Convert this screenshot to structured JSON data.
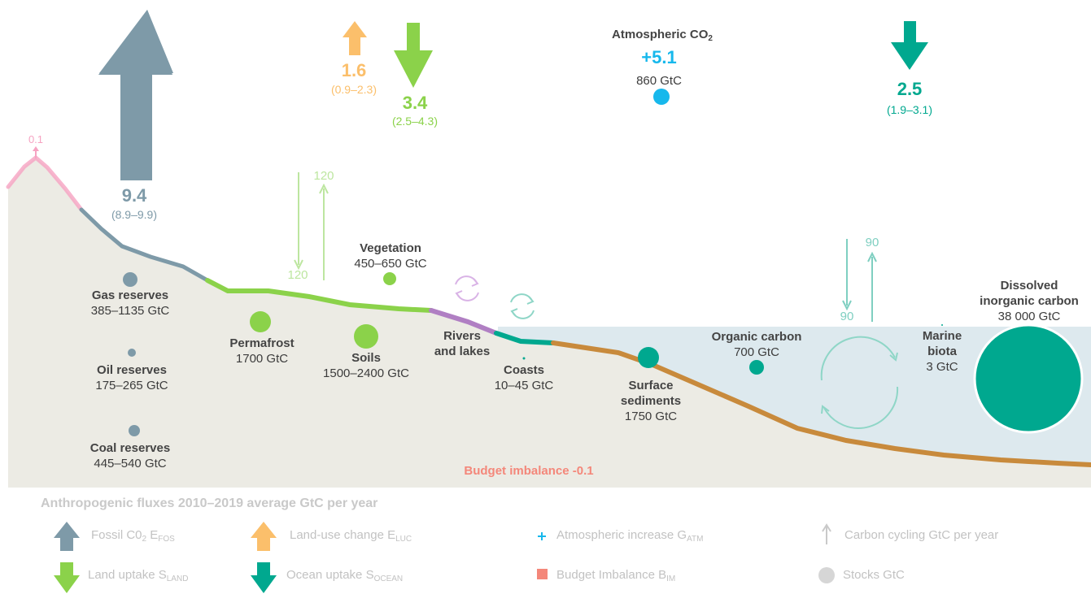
{
  "atmosphere": {
    "title_main": "Atmospheric CO",
    "title_sub": "2",
    "increase": "+5.1",
    "stock": "860 GtC"
  },
  "fluxes": {
    "volcanic": {
      "value": "0.1"
    },
    "fossil": {
      "value": "9.4",
      "range": "(8.9–9.9)"
    },
    "land_use": {
      "value": "1.6",
      "range": "(0.9–2.3)"
    },
    "land_uptake": {
      "value": "3.4",
      "range": "(2.5–4.3)"
    },
    "ocean_uptake": {
      "value": "2.5",
      "range": "(1.9–3.1)"
    }
  },
  "cycling": {
    "land_down": "120",
    "land_up": "120",
    "ocean_down": "90",
    "ocean_up": "90"
  },
  "stocks": {
    "gas": {
      "name": "Gas reserves",
      "value": "385–1135 GtC"
    },
    "oil": {
      "name": "Oil reserves",
      "value": "175–265 GtC"
    },
    "coal": {
      "name": "Coal reserves",
      "value": "445–540 GtC"
    },
    "permafrost": {
      "name": "Permafrost",
      "value": "1700 GtC"
    },
    "vegetation": {
      "name": "Vegetation",
      "value": "450–650 GtC"
    },
    "soils": {
      "name": "Soils",
      "value": "1500–2400 GtC"
    },
    "rivers": {
      "name_line1": "Rivers",
      "name_line2": "and lakes"
    },
    "coasts": {
      "name": "Coasts",
      "value": "10–45 GtC"
    },
    "sediments": {
      "name_line1": "Surface",
      "name_line2": "sediments",
      "value": "1750 GtC"
    },
    "organic": {
      "name": "Organic carbon",
      "value": "700 GtC"
    },
    "marine": {
      "name_line1": "Marine",
      "name_line2": "biota",
      "value": "3 GtC"
    },
    "dissolved": {
      "name_line1": "Dissolved",
      "name_line2": "inorganic carbon",
      "value": "38 000 GtC"
    }
  },
  "budget_imbalance": "Budget imbalance -0.1",
  "legend": {
    "title": "Anthropogenic fluxes 2010–2019 average GtC per year",
    "fossil": {
      "label": "Fossil C0",
      "sub1": "2",
      "mid": " E",
      "sub2": "FOS"
    },
    "land_use": {
      "label": "Land-use change E",
      "sub": "LUC"
    },
    "atm": {
      "label": "Atmospheric increase G",
      "sub": "ATM"
    },
    "cycling": {
      "label": "Carbon cycling GtC per year"
    },
    "land_uptake": {
      "label": "Land uptake S",
      "sub": "LAND"
    },
    "ocean_uptake": {
      "label": "Ocean uptake S",
      "sub": "OCEAN"
    },
    "imbalance": {
      "label": "Budget Imbalance B",
      "sub": "IM"
    },
    "stocks": {
      "label": "Stocks GtC"
    }
  },
  "colors": {
    "fossil": "#7e9aa8",
    "land_use": "#fbbf6b",
    "land_uptake": "#8bd24a",
    "ocean_uptake": "#00a88f",
    "atmosphere": "#17b8ec",
    "imbalance": "#f4877a",
    "land_bg": "#ecebe4",
    "ocean_bg": "#dde9ee",
    "sediment": "#c88a3c",
    "rivers": "#b07fc3",
    "volcanic": "#f6a3c2"
  }
}
